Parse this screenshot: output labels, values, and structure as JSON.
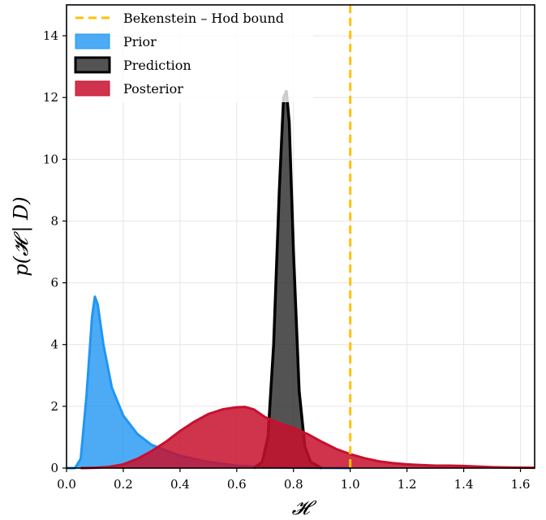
{
  "chart_data": {
    "type": "area",
    "xlabel": "𝓗",
    "ylabel": "p(𝓗 | D)",
    "xlim": [
      0.0,
      1.65
    ],
    "ylim": [
      0,
      15
    ],
    "xticks": [
      "0.0",
      "0.2",
      "0.4",
      "0.6",
      "0.8",
      "1.0",
      "1.2",
      "1.4",
      "1.6"
    ],
    "yticks": [
      "0",
      "2",
      "4",
      "6",
      "8",
      "10",
      "12",
      "14"
    ],
    "grid": true,
    "legend_position": "top-left",
    "reference_line": {
      "name": "Bekenstein – Hod bound",
      "x": 1.0,
      "color": "#FFC107",
      "style": "dashed"
    },
    "series": [
      {
        "name": "Prior",
        "color": "#2196F3",
        "fill_opacity": 0.8,
        "points": [
          [
            0.0,
            0
          ],
          [
            0.03,
            0
          ],
          [
            0.05,
            0.3
          ],
          [
            0.07,
            2.3
          ],
          [
            0.09,
            4.9
          ],
          [
            0.1,
            5.55
          ],
          [
            0.11,
            5.3
          ],
          [
            0.13,
            4.0
          ],
          [
            0.16,
            2.6
          ],
          [
            0.2,
            1.7
          ],
          [
            0.25,
            1.1
          ],
          [
            0.3,
            0.75
          ],
          [
            0.4,
            0.4
          ],
          [
            0.5,
            0.2
          ],
          [
            0.6,
            0.08
          ],
          [
            0.7,
            0.03
          ],
          [
            0.85,
            0.01
          ],
          [
            1.0,
            0
          ]
        ]
      },
      {
        "name": "Prediction",
        "color": "#1a1a1a",
        "edge_color": "#000000",
        "fill_opacity": 0.75,
        "points": [
          [
            0.66,
            0
          ],
          [
            0.69,
            0.2
          ],
          [
            0.71,
            1.0
          ],
          [
            0.73,
            4.0
          ],
          [
            0.75,
            9.0
          ],
          [
            0.765,
            12.0
          ],
          [
            0.775,
            12.2
          ],
          [
            0.785,
            11.2
          ],
          [
            0.8,
            7.0
          ],
          [
            0.82,
            2.5
          ],
          [
            0.84,
            0.7
          ],
          [
            0.86,
            0.2
          ],
          [
            0.9,
            0
          ]
        ]
      },
      {
        "name": "Posterior",
        "color": "#C8102E",
        "fill_opacity": 0.85,
        "points": [
          [
            0.05,
            0
          ],
          [
            0.1,
            0.01
          ],
          [
            0.15,
            0.04
          ],
          [
            0.2,
            0.12
          ],
          [
            0.25,
            0.3
          ],
          [
            0.3,
            0.55
          ],
          [
            0.35,
            0.85
          ],
          [
            0.4,
            1.2
          ],
          [
            0.45,
            1.5
          ],
          [
            0.5,
            1.75
          ],
          [
            0.55,
            1.9
          ],
          [
            0.6,
            1.97
          ],
          [
            0.63,
            1.98
          ],
          [
            0.66,
            1.9
          ],
          [
            0.7,
            1.65
          ],
          [
            0.75,
            1.45
          ],
          [
            0.8,
            1.3
          ],
          [
            0.85,
            1.1
          ],
          [
            0.9,
            0.85
          ],
          [
            0.95,
            0.62
          ],
          [
            1.0,
            0.45
          ],
          [
            1.05,
            0.32
          ],
          [
            1.1,
            0.22
          ],
          [
            1.15,
            0.16
          ],
          [
            1.2,
            0.12
          ],
          [
            1.25,
            0.1
          ],
          [
            1.3,
            0.08
          ],
          [
            1.35,
            0.08
          ],
          [
            1.4,
            0.07
          ],
          [
            1.45,
            0.05
          ],
          [
            1.5,
            0.03
          ],
          [
            1.55,
            0.02
          ],
          [
            1.65,
            0.01
          ]
        ]
      }
    ]
  }
}
